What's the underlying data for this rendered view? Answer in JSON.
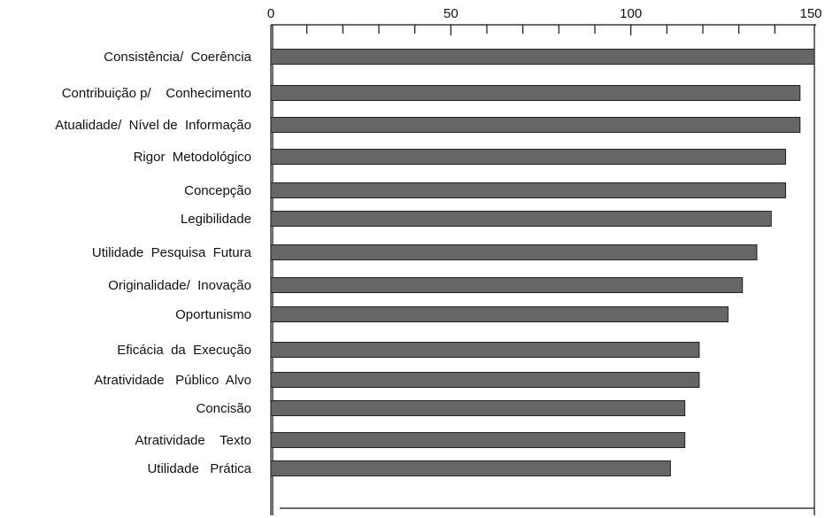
{
  "chart_data": {
    "type": "bar",
    "orientation": "horizontal",
    "x_ticks": [
      "0",
      "50",
      "100",
      "150"
    ],
    "xlim": [
      0,
      150
    ],
    "categories": [
      "Consistência/  Coerência",
      "Contribuição p/    Conhecimento",
      "Atualidade/  Nível de  Informação",
      "Rigor  Metodológico",
      "Concepção",
      "Legibilidade",
      "Utilidade  Pesquisa  Futura",
      "Originalidade/  Inovação",
      "Oportunismo",
      "Eficácia  da  Execução",
      "Atratividade   Público  Alvo",
      "Concisão",
      "Atratividade    Texto",
      "Utilidade   Prática"
    ],
    "values": [
      151,
      147,
      147,
      143,
      143,
      139,
      135,
      131,
      127,
      119,
      119,
      115,
      115,
      111
    ],
    "grid": false,
    "colors": {
      "bar": "#666666",
      "bar_border": "#222222",
      "axis": "#111111"
    }
  }
}
